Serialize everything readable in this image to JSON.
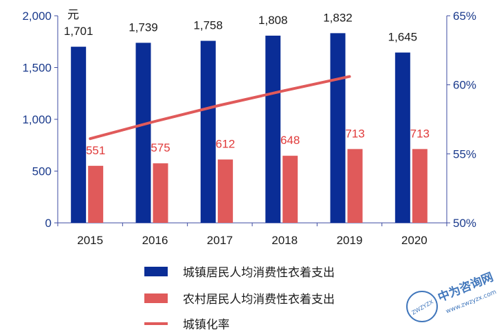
{
  "chart_data": {
    "type": "bar",
    "categories": [
      "2015",
      "2016",
      "2017",
      "2018",
      "2019",
      "2020"
    ],
    "y_unit": "元",
    "ylim": [
      0,
      2000
    ],
    "yticks": [
      "0",
      "500",
      "1,000",
      "1,500",
      "2,000"
    ],
    "y2lim": [
      50,
      65
    ],
    "y2ticks": [
      "50%",
      "55%",
      "60%",
      "65%"
    ],
    "series": [
      {
        "name": "城镇居民人均消费性衣着支出",
        "kind": "bar",
        "axis": "left",
        "color": "#0a2d96",
        "values": [
          1701,
          1739,
          1758,
          1808,
          1832,
          1645
        ],
        "labels": [
          "1,701",
          "1,739",
          "1,758",
          "1,808",
          "1,832",
          "1,645"
        ]
      },
      {
        "name": "农村居民人均消费性衣着支出",
        "kind": "bar",
        "axis": "left",
        "color": "#e05a5a",
        "values": [
          551,
          575,
          612,
          648,
          713,
          713
        ],
        "labels": [
          "551",
          "575",
          "612",
          "648",
          "713",
          "713"
        ]
      },
      {
        "name": "城镇化率",
        "kind": "line",
        "axis": "right",
        "color": "#e05a5a",
        "values": [
          56.1,
          57.35,
          58.52,
          59.58,
          60.6,
          null
        ]
      }
    ],
    "grid": false,
    "legend_position": "bottom"
  },
  "watermark": {
    "text": "中为咨询网",
    "domain": "www.zwzyzx.com",
    "badge_text": "ZWZYZX",
    "color": "#1f5fb0"
  }
}
